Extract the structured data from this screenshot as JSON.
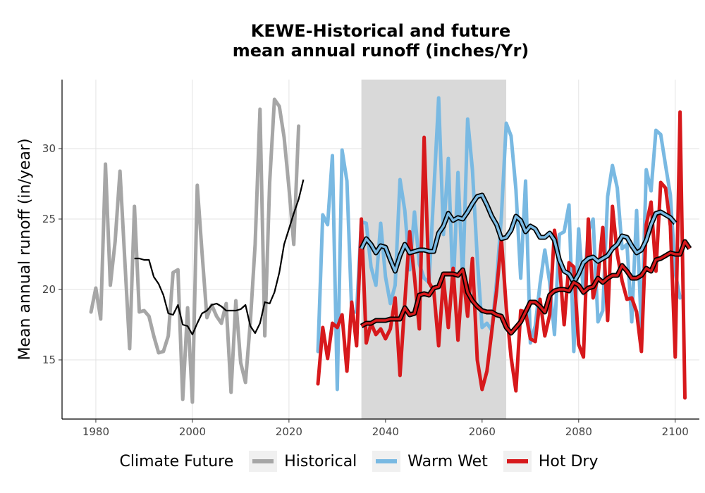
{
  "title_line1": "KEWE-Historical and future",
  "title_line2": "mean annual runoff (inches/Yr)",
  "chart_data": {
    "type": "line",
    "title": "KEWE-Historical and future mean annual runoff (inches/Yr)",
    "xlabel": "",
    "ylabel": "Mean annual runoff (in/year)",
    "xlim": [
      1973,
      2105
    ],
    "ylim": [
      10.8,
      34.9
    ],
    "xticks": [
      1980,
      2000,
      2020,
      2040,
      2060,
      2080,
      2100
    ],
    "yticks": [
      15,
      20,
      25,
      30
    ],
    "shaded_period": [
      2035,
      2065
    ],
    "grid": true,
    "legend_position": "bottom",
    "legend_title": "Climate Future",
    "colors": {
      "Historical": "#a6a6a6",
      "Warm Wet": "#79b9e2",
      "Hot Dry": "#d7191c",
      "shade": "#d9d9d9"
    },
    "series": [
      {
        "name": "Historical",
        "x_start": 1979,
        "values": [
          18.4,
          20.1,
          17.9,
          28.9,
          20.3,
          23.4,
          28.4,
          22.1,
          15.8,
          25.9,
          18.4,
          18.5,
          18.1,
          16.7,
          15.5,
          15.6,
          16.7,
          21.2,
          21.4,
          12.2,
          18.7,
          12.0,
          27.4,
          22.6,
          18.0,
          18.9,
          18.1,
          17.6,
          19.0,
          12.7,
          19.2,
          14.8,
          13.4,
          17.7,
          23.2,
          32.8,
          16.7,
          27.6,
          33.5,
          33.0,
          30.8,
          27.2,
          23.2,
          31.6
        ]
      },
      {
        "name": "Historical (smoothed)",
        "x_start": 1988,
        "values": [
          22.2,
          22.2,
          22.1,
          22.1,
          20.9,
          20.4,
          19.6,
          18.3,
          18.2,
          18.9,
          17.5,
          17.4,
          16.8,
          17.6,
          18.3,
          18.5,
          18.9,
          19.0,
          18.8,
          18.5,
          18.5,
          18.5,
          18.6,
          18.9,
          17.4,
          16.9,
          17.6,
          19.1,
          19.0,
          19.8,
          21.2,
          23.2,
          24.3,
          25.4,
          26.4,
          27.8
        ]
      },
      {
        "name": "Warm Wet",
        "x_start": 2026,
        "values": [
          15.6,
          25.3,
          24.6,
          29.5,
          12.9,
          29.9,
          27.7,
          18.4,
          18.4,
          24.8,
          24.7,
          21.6,
          20.3,
          24.7,
          20.9,
          19.0,
          20.3,
          27.8,
          25.6,
          21.4,
          25.5,
          21.8,
          20.8,
          20.5,
          26.9,
          33.6,
          23.9,
          29.3,
          19.8,
          28.3,
          20.6,
          32.1,
          28.5,
          22.2,
          17.3,
          17.6,
          17.1,
          20.6,
          25.2,
          31.8,
          30.9,
          27.1,
          20.8,
          27.7,
          16.2,
          17.4,
          20.4,
          22.8,
          20.5,
          16.8,
          23.9,
          24.1,
          26.0,
          15.6,
          24.3,
          19.7,
          24.1,
          25.0,
          17.7,
          18.5,
          26.6,
          28.8,
          27.2,
          22.9,
          23.2,
          17.7,
          25.6,
          17.0,
          28.5,
          27.0,
          31.3,
          31.0,
          28.8,
          26.7,
          21.2,
          19.4
        ]
      },
      {
        "name": "Warm Wet (smoothed)",
        "x_start": 2035,
        "values": [
          22.9,
          23.6,
          23.2,
          22.6,
          23.1,
          23.0,
          22.1,
          21.3,
          22.4,
          23.2,
          22.6,
          22.7,
          22.8,
          22.8,
          22.7,
          22.7,
          24.0,
          24.5,
          25.4,
          24.9,
          25.1,
          25.0,
          25.5,
          26.1,
          26.6,
          26.7,
          26.0,
          25.2,
          24.6,
          23.6,
          23.7,
          24.2,
          25.2,
          24.9,
          24.1,
          24.5,
          24.3,
          23.7,
          23.7,
          24.0,
          23.5,
          22.1,
          21.3,
          21.1,
          20.5,
          21.1,
          21.9,
          22.2,
          22.3,
          22.0,
          22.2,
          22.4,
          22.9,
          23.2,
          23.8,
          23.7,
          23.1,
          22.6,
          22.8,
          23.5,
          24.6,
          25.4,
          25.5,
          25.3,
          25.1,
          24.7
        ]
      },
      {
        "name": "Hot Dry",
        "x_start": 2026,
        "values": [
          13.3,
          17.3,
          15.1,
          17.6,
          17.3,
          18.2,
          14.2,
          19.1,
          16.0,
          25.0,
          16.2,
          17.6,
          16.8,
          17.2,
          16.5,
          17.2,
          19.4,
          13.9,
          19.1,
          24.1,
          20.9,
          17.2,
          30.8,
          20.5,
          19.9,
          16.0,
          20.8,
          17.3,
          21.5,
          16.4,
          21.2,
          18.1,
          22.2,
          15.0,
          12.9,
          14.2,
          17.0,
          19.9,
          23.6,
          18.7,
          15.2,
          12.8,
          18.5,
          18.4,
          16.5,
          16.3,
          19.3,
          16.7,
          18.2,
          24.2,
          21.9,
          17.5,
          21.9,
          21.6,
          16.1,
          15.2,
          25.0,
          19.4,
          20.9,
          24.4,
          17.8,
          25.9,
          22.5,
          20.6,
          19.3,
          19.4,
          18.4,
          15.6,
          24.6,
          26.2,
          21.3,
          27.6,
          27.2,
          24.5,
          15.2,
          32.6,
          12.3
        ]
      },
      {
        "name": "Hot Dry (smoothed)",
        "x_start": 2035,
        "values": [
          17.4,
          17.6,
          17.6,
          17.8,
          17.8,
          17.8,
          17.9,
          17.9,
          17.9,
          18.7,
          18.2,
          18.3,
          19.6,
          19.7,
          19.6,
          20.1,
          20.2,
          21.1,
          21.1,
          21.1,
          21.0,
          21.4,
          19.8,
          19.2,
          18.8,
          18.5,
          18.4,
          18.4,
          18.2,
          18.1,
          17.3,
          16.9,
          17.3,
          17.7,
          18.4,
          19.1,
          19.1,
          18.8,
          18.4,
          19.6,
          19.9,
          20.0,
          20.0,
          19.9,
          20.5,
          20.3,
          19.8,
          20.1,
          20.2,
          20.8,
          20.5,
          20.8,
          21.0,
          21.0,
          21.7,
          21.3,
          20.8,
          20.8,
          21.0,
          21.5,
          21.3,
          22.1,
          22.2,
          22.4,
          22.6,
          22.5,
          22.5,
          23.4,
          22.9
        ]
      }
    ],
    "legend": {
      "title": "Climate Future",
      "items": [
        {
          "label": "Historical",
          "color": "#a6a6a6"
        },
        {
          "label": "Warm Wet",
          "color": "#79b9e2"
        },
        {
          "label": "Hot Dry",
          "color": "#d7191c"
        }
      ]
    }
  }
}
